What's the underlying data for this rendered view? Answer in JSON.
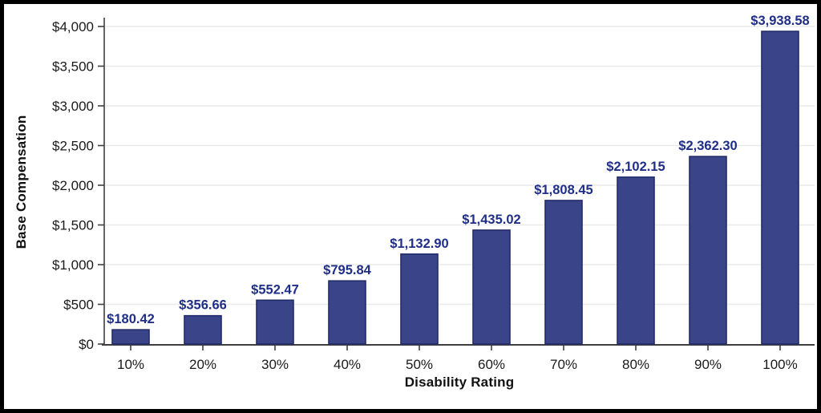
{
  "chart_data": {
    "type": "bar",
    "title": "",
    "xlabel": "Disability Rating",
    "ylabel": "Base Compensation",
    "categories": [
      "10%",
      "20%",
      "30%",
      "40%",
      "50%",
      "60%",
      "70%",
      "80%",
      "90%",
      "100%"
    ],
    "values": [
      180.42,
      356.66,
      552.47,
      795.84,
      1132.9,
      1435.02,
      1808.45,
      2102.15,
      2362.3,
      3938.58
    ],
    "value_labels": [
      "$180.42",
      "$356.66",
      "$552.47",
      "$795.84",
      "$1,132.90",
      "$1,435.02",
      "$1,808.45",
      "$2,102.15",
      "$2,362.30",
      "$3,938.58"
    ],
    "ylim": [
      0,
      4000
    ],
    "ytick_step": 500,
    "ytick_labels": [
      "$0",
      "$500",
      "$1,000",
      "$1,500",
      "$2,000",
      "$2,500",
      "$3,000",
      "$3,500",
      "$4,000"
    ],
    "grid": true,
    "legend": "none",
    "colors": {
      "bar_fill": "#3a4489",
      "bar_border": "#232c6b",
      "value_label": "#1f2e87",
      "gridline": "#eaeaea",
      "axis": "#3f3f3f",
      "tick_text": "#1a1a1a",
      "background": "#ffffff",
      "frame": "#000000"
    }
  }
}
